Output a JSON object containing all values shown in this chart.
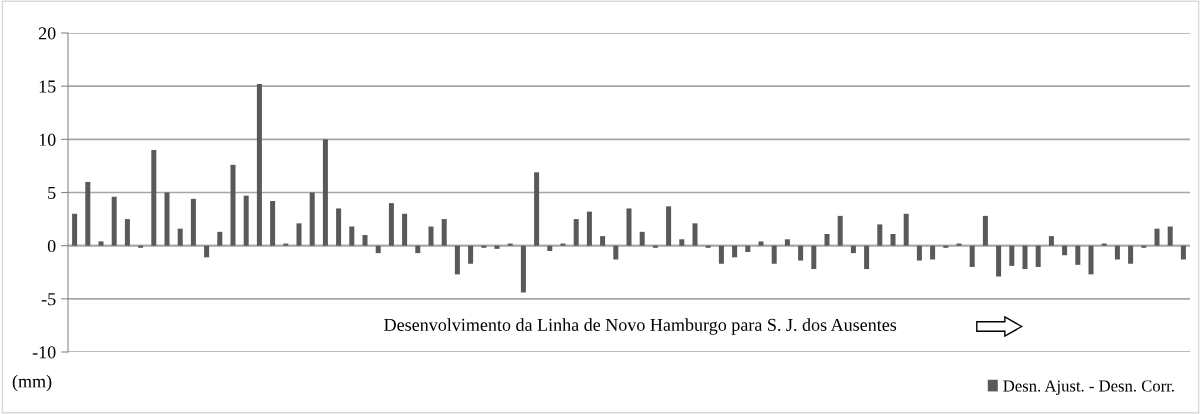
{
  "chart_data": {
    "type": "bar",
    "categories": [
      null,
      null,
      null,
      null,
      null,
      null,
      null,
      null,
      null,
      null,
      null,
      null,
      null,
      null,
      null,
      null,
      null,
      null,
      null,
      null,
      null,
      null,
      null,
      null,
      null,
      null,
      null,
      null,
      null,
      null,
      null,
      null,
      null,
      null,
      null,
      null,
      null,
      null,
      null,
      null,
      null,
      null,
      null,
      null,
      null,
      null,
      null,
      null,
      null,
      null,
      null,
      null,
      null,
      null,
      null,
      null,
      null,
      null,
      null,
      null,
      null,
      null,
      null,
      null,
      null,
      null,
      null,
      null,
      null,
      null,
      null,
      null,
      null,
      null,
      null,
      null,
      null,
      null,
      null,
      null,
      null,
      null,
      null,
      null,
      null
    ],
    "series": [
      {
        "name": "Desn. Ajust. - Desn. Corr.",
        "color": "#595959",
        "values": [
          3.0,
          6.0,
          0.4,
          4.6,
          2.5,
          -0.2,
          9.0,
          5.0,
          1.6,
          4.4,
          -1.1,
          1.3,
          7.6,
          4.7,
          15.2,
          4.2,
          0.2,
          2.1,
          5.0,
          10.0,
          3.5,
          1.8,
          1.0,
          -0.7,
          4.0,
          3.0,
          -0.7,
          1.8,
          2.5,
          -2.7,
          -1.7,
          -0.2,
          -0.3,
          0.2,
          -4.4,
          6.9,
          -0.5,
          0.2,
          2.5,
          3.2,
          0.9,
          -1.3,
          3.5,
          1.3,
          -0.2,
          3.7,
          0.6,
          2.1,
          -0.2,
          -1.7,
          -1.1,
          -0.6,
          0.4,
          -1.7,
          0.6,
          -1.4,
          -2.2,
          1.1,
          2.8,
          -0.7,
          -2.2,
          2.0,
          1.1,
          3.0,
          -1.4,
          -1.3,
          -0.2,
          0.2,
          -2.0,
          2.8,
          -2.9,
          -1.9,
          -2.2,
          -2.0,
          0.9,
          -0.9,
          -1.8,
          -2.7,
          0.2,
          -1.3,
          -1.7,
          -0.2,
          1.6,
          1.8,
          -1.3
        ]
      }
    ],
    "ylabel": "(mm)",
    "ylim": [
      -10,
      20
    ],
    "yticks": [
      -10,
      -5,
      0,
      5,
      10,
      15,
      20
    ],
    "tick_labels": "y",
    "grid": "y",
    "legend": "bottom right",
    "annotations": [
      "Desenvolvimento da Linha de Novo Hamburgo para S. J. dos Ausentes"
    ]
  }
}
